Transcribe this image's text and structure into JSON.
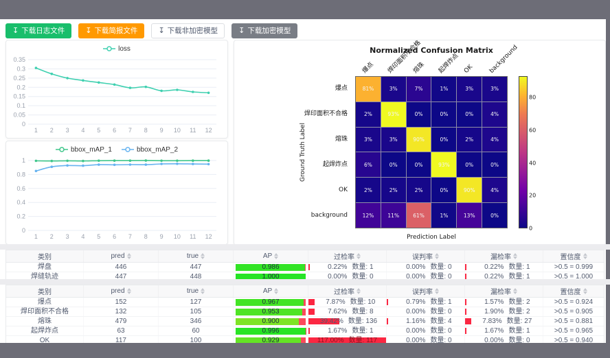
{
  "toolbar": {
    "download_icon": "↧",
    "buttons": [
      {
        "label": "下载日志文件",
        "variant": "success"
      },
      {
        "label": "下载简报文件",
        "variant": "warning"
      },
      {
        "label": "下载非加密模型",
        "variant": "default"
      },
      {
        "label": "下载加密模型",
        "variant": "gray"
      }
    ]
  },
  "chart_data": [
    {
      "id": "loss",
      "type": "line",
      "x": [
        1,
        2,
        3,
        4,
        5,
        6,
        7,
        8,
        9,
        10,
        11,
        12
      ],
      "series": [
        {
          "name": "loss",
          "color": "#3fd0b0",
          "values": [
            0.305,
            0.273,
            0.25,
            0.237,
            0.226,
            0.215,
            0.197,
            0.202,
            0.181,
            0.186,
            0.175,
            0.17
          ]
        }
      ],
      "ylim": [
        0,
        0.35
      ],
      "yticks": [
        0,
        0.05,
        0.1,
        0.15,
        0.2,
        0.25,
        0.3,
        0.35
      ],
      "grid": true,
      "legend_position": "top"
    },
    {
      "id": "map",
      "type": "line",
      "x": [
        1,
        2,
        3,
        4,
        5,
        6,
        7,
        8,
        9,
        10,
        11,
        12
      ],
      "series": [
        {
          "name": "bbox_mAP_1",
          "color": "#3ec68a",
          "values": [
            0.995,
            0.993,
            0.996,
            0.993,
            0.997,
            0.998,
            0.998,
            0.999,
            0.997,
            0.997,
            0.998,
            0.998
          ]
        },
        {
          "name": "bbox_mAP_2",
          "color": "#66b3f0",
          "values": [
            0.85,
            0.91,
            0.928,
            0.925,
            0.94,
            0.938,
            0.941,
            0.94,
            0.951,
            0.953,
            0.95,
            0.948
          ]
        }
      ],
      "ylim": [
        0,
        1
      ],
      "yticks": [
        0,
        0.2,
        0.4,
        0.6,
        0.8,
        1
      ],
      "grid": true,
      "legend_position": "top"
    },
    {
      "id": "confusion",
      "type": "heatmap",
      "title": "Normalized Confusion Matrix",
      "xlabel": "Prediction Label",
      "ylabel": "Ground Truth Label",
      "labels": [
        "爆点",
        "焊印面积不合格",
        "熔珠",
        "起焊炸点",
        "OK",
        "background"
      ],
      "values_pct": [
        [
          81,
          3,
          7,
          1,
          3,
          3
        ],
        [
          2,
          93,
          0,
          0,
          0,
          4
        ],
        [
          3,
          3,
          90,
          0,
          2,
          4
        ],
        [
          6,
          0,
          0,
          93,
          0,
          0
        ],
        [
          2,
          2,
          2,
          0,
          90,
          4
        ],
        [
          12,
          11,
          61,
          1,
          13,
          0
        ]
      ],
      "vmax": 93,
      "colorbar_ticks": [
        0,
        20,
        40,
        60,
        80
      ],
      "legend_position": "right-colorbar"
    }
  ],
  "tables": {
    "count_label": "数量",
    "headers": {
      "class": "类别",
      "pred": "pred",
      "true": "true",
      "ap": "AP",
      "overkill": "过检率",
      "misjudge": "误判率",
      "miss": "漏检率",
      "confidence": "置信度"
    },
    "groups": [
      {
        "rows": [
          {
            "class": "焊盘",
            "pred": 446,
            "true": 447,
            "ap": 0.986,
            "overkill": {
              "pct": 0.22,
              "count": 1
            },
            "misjudge": {
              "pct": 0.0,
              "count": 0
            },
            "miss": {
              "pct": 0.22,
              "count": 1
            },
            "confidence": ">0.5 = 0.999"
          },
          {
            "class": "焊缝轨迹",
            "pred": 447,
            "true": 448,
            "ap": 1.0,
            "overkill": {
              "pct": 0.0,
              "count": 0
            },
            "misjudge": {
              "pct": 0.0,
              "count": 0
            },
            "miss": {
              "pct": 0.22,
              "count": 1
            },
            "confidence": ">0.5 = 1.000"
          }
        ]
      },
      {
        "rows": [
          {
            "class": "爆点",
            "pred": 152,
            "true": 127,
            "ap": 0.967,
            "overkill": {
              "pct": 7.87,
              "count": 10
            },
            "misjudge": {
              "pct": 0.79,
              "count": 1
            },
            "miss": {
              "pct": 1.57,
              "count": 2
            },
            "confidence": ">0.5 = 0.924"
          },
          {
            "class": "焊印面积不合格",
            "pred": 132,
            "true": 105,
            "ap": 0.953,
            "overkill": {
              "pct": 7.62,
              "count": 8
            },
            "misjudge": {
              "pct": 0.0,
              "count": 0
            },
            "miss": {
              "pct": 1.9,
              "count": 2
            },
            "confidence": ">0.5 = 0.905"
          },
          {
            "class": "熔珠",
            "pred": 479,
            "true": 346,
            "ap": 0.9,
            "overkill": {
              "pct": 39.42,
              "count": 136
            },
            "misjudge": {
              "pct": 1.16,
              "count": 4
            },
            "miss": {
              "pct": 7.83,
              "count": 27
            },
            "confidence": ">0.5 = 0.881"
          },
          {
            "class": "起焊炸点",
            "pred": 63,
            "true": 60,
            "ap": 0.996,
            "overkill": {
              "pct": 1.67,
              "count": 1
            },
            "misjudge": {
              "pct": 0.0,
              "count": 0
            },
            "miss": {
              "pct": 1.67,
              "count": 1
            },
            "confidence": ">0.5 = 0.965"
          },
          {
            "class": "OK",
            "pred": 117,
            "true": 100,
            "ap": 0.929,
            "overkill": {
              "pct": 117.0,
              "count": 117
            },
            "misjudge": {
              "pct": 0.0,
              "count": 0
            },
            "miss": {
              "pct": 0.0,
              "count": 0
            },
            "confidence": ">0.5 = 0.940"
          }
        ]
      }
    ]
  }
}
